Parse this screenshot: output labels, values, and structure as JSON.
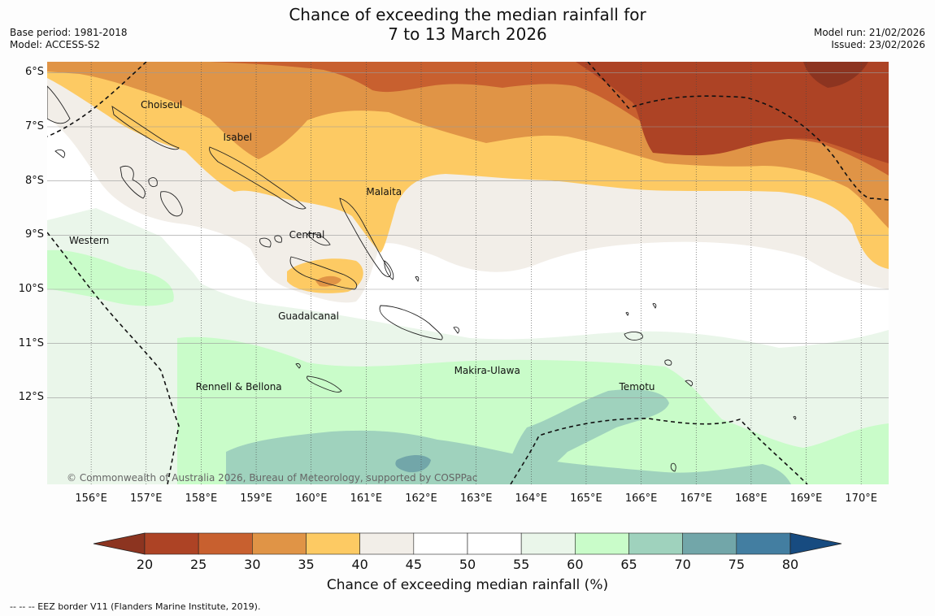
{
  "title": {
    "line1": "Chance of exceeding the median rainfall for",
    "line2": "7 to 13 March 2026"
  },
  "meta_left": {
    "base_period": "Base period: 1981-2018",
    "model": "Model: ACCESS-S2"
  },
  "meta_right": {
    "model_run": "Model run: 21/02/2026",
    "issued": "Issued: 23/02/2026"
  },
  "map": {
    "lat_labels": [
      "6°S",
      "7°S",
      "8°S",
      "9°S",
      "10°S",
      "11°S",
      "12°S"
    ],
    "lon_labels": [
      "156°E",
      "157°E",
      "158°E",
      "159°E",
      "160°E",
      "161°E",
      "162°E",
      "163°E",
      "164°E",
      "165°E",
      "166°E",
      "167°E",
      "168°E",
      "169°E",
      "170°E"
    ],
    "lat_range": [
      -13.6,
      -5.8
    ],
    "lon_range": [
      155.2,
      170.5
    ],
    "places": [
      {
        "name": "Choiseul",
        "lon": 156.9,
        "lat": -6.6
      },
      {
        "name": "Isabel",
        "lon": 158.4,
        "lat": -7.2
      },
      {
        "name": "Malaita",
        "lon": 161.0,
        "lat": -8.2
      },
      {
        "name": "Central",
        "lon": 159.6,
        "lat": -9.0
      },
      {
        "name": "Western",
        "lon": 155.6,
        "lat": -9.1
      },
      {
        "name": "Guadalcanal",
        "lon": 159.4,
        "lat": -10.5
      },
      {
        "name": "Makira-Ulawa",
        "lon": 162.6,
        "lat": -11.5
      },
      {
        "name": "Rennell & Bellona",
        "lon": 157.9,
        "lat": -11.8
      },
      {
        "name": "Temotu",
        "lon": 165.6,
        "lat": -11.8
      }
    ],
    "copyright": "© Commonwealth of Australia 2026, Bureau of Meteorology, supported by COSPPac"
  },
  "colorbar": {
    "ticks": [
      "20",
      "25",
      "30",
      "35",
      "40",
      "45",
      "50",
      "55",
      "60",
      "65",
      "70",
      "75",
      "80"
    ],
    "colors": [
      "#ad4325",
      "#c8602f",
      "#e09446",
      "#fdca63",
      "#f2eee8",
      "#ffffff",
      "#ffffff",
      "#eaf6ea",
      "#c9fcc9",
      "#9fd2bd",
      "#72a6a9",
      "#437ea1"
    ],
    "under_color": "#8c3420",
    "over_color": "#174b80",
    "title": "Chance of exceeding median rainfall (%)"
  },
  "footnote": "--  --  -- EEZ border V11 (Flanders Marine Institute, 2019)."
}
